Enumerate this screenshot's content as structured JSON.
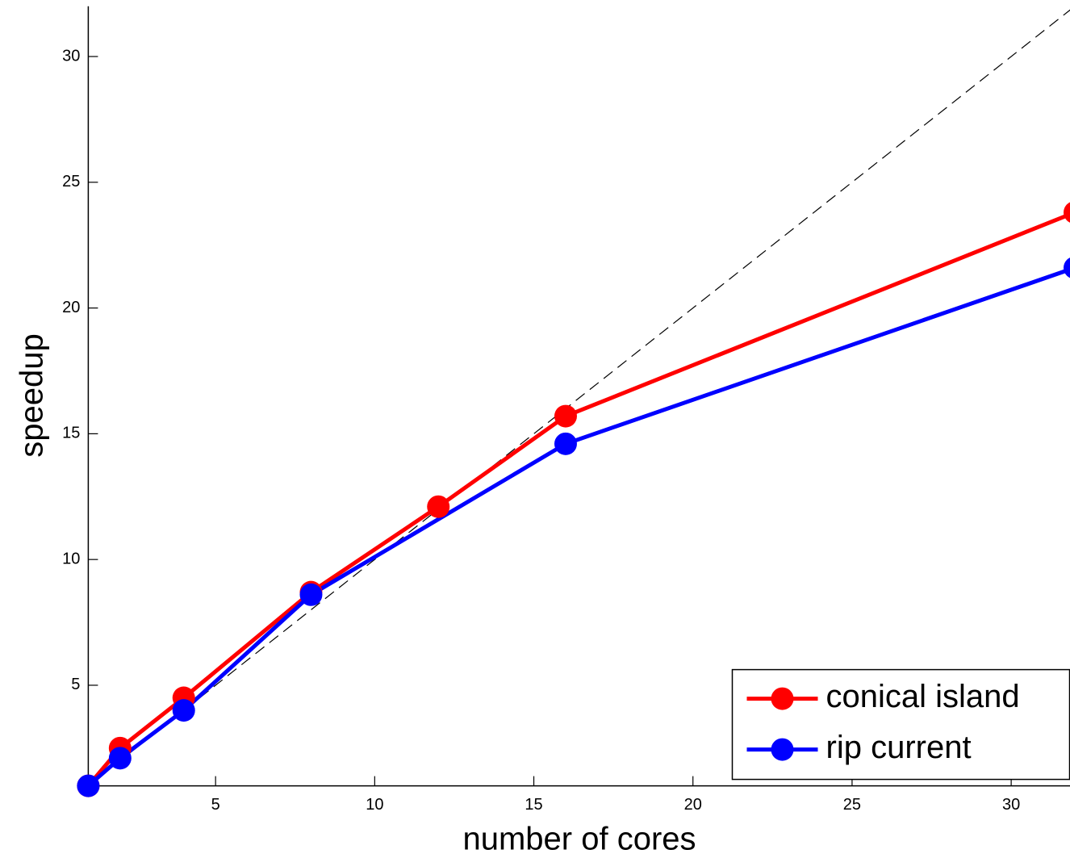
{
  "chart_data": {
    "type": "line",
    "xlabel": "number of cores",
    "ylabel": "speedup",
    "xlim": [
      1,
      32
    ],
    "ylim": [
      1,
      32
    ],
    "xticks": [
      5,
      10,
      15,
      20,
      25,
      30
    ],
    "yticks": [
      5,
      10,
      15,
      20,
      25,
      30
    ],
    "legend": "lower right",
    "reference_line": {
      "x": [
        1,
        32
      ],
      "values": [
        1,
        32
      ],
      "color": "#000000",
      "dashed": true
    },
    "series": [
      {
        "name": "conical island",
        "color": "#ff0000",
        "x": [
          1,
          2,
          4,
          8,
          12,
          16,
          32
        ],
        "values": [
          1,
          2.5,
          4.5,
          8.7,
          12.1,
          15.7,
          23.8
        ]
      },
      {
        "name": "rip current",
        "color": "#0000ff",
        "x": [
          1,
          2,
          4,
          8,
          16,
          32
        ],
        "values": [
          1,
          2.1,
          4,
          8.6,
          14.6,
          21.6
        ]
      }
    ]
  }
}
